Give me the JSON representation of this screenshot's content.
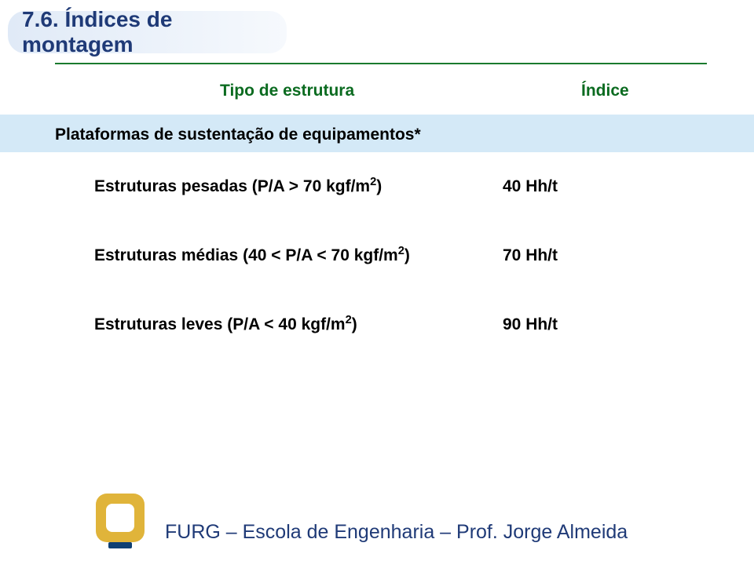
{
  "colors": {
    "title_text": "#1f3a77",
    "banner_bg_start": "#e0eaf7",
    "banner_bg_end": "#f6f9fd",
    "divider": "#1a7a2e",
    "header_text": "#0b6b20",
    "section_bg": "#d4e9f7",
    "text": "#000000",
    "footer_text": "#1f3a77",
    "logo_outer": "#e0b43a",
    "logo_base": "#0e3f73"
  },
  "fontsize": {
    "title": 28,
    "header": 21,
    "section": 21,
    "row": 21,
    "footer": 25
  },
  "title": "7.6. Índices de montagem",
  "table": {
    "col1": "Tipo de estrutura",
    "col2": "Índice",
    "section": "Plataformas de sustentação de equipamentos*",
    "rows": [
      {
        "label_pre": "Estruturas pesadas (P/A > 70 kgf/m",
        "label_sup": "2",
        "label_post": ")",
        "value": "40 Hh/t"
      },
      {
        "label_pre": "Estruturas médias (40 < P/A < 70 kgf/m",
        "label_sup": "2",
        "label_post": ")",
        "value": "70 Hh/t"
      },
      {
        "label_pre": "Estruturas leves (P/A < 40 kgf/m",
        "label_sup": "2",
        "label_post": ")",
        "value": "90 Hh/t"
      }
    ]
  },
  "footer": "FURG – Escola de Engenharia – Prof. Jorge Almeida"
}
